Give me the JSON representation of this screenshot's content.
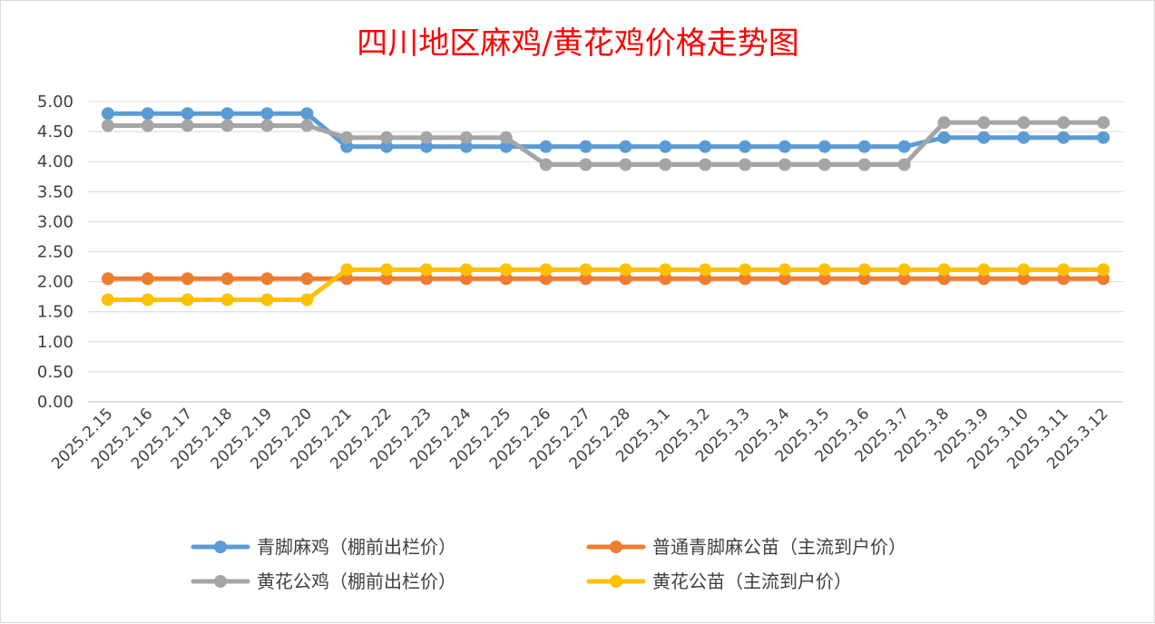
{
  "chart_data": {
    "type": "line",
    "title": "四川地区麻鸡/黄花鸡价格走势图",
    "xlabel": "",
    "ylabel": "",
    "ylim": [
      0,
      5
    ],
    "ytick_labels": [
      "0.00",
      "0.50",
      "1.00",
      "1.50",
      "2.00",
      "2.50",
      "3.00",
      "3.50",
      "4.00",
      "4.50",
      "5.00"
    ],
    "grid": true,
    "legend_position": "bottom",
    "categories": [
      "2025.2.15",
      "2025.2.16",
      "2025.2.17",
      "2025.2.18",
      "2025.2.19",
      "2025.2.20",
      "2025.2.21",
      "2025.2.22",
      "2025.2.23",
      "2025.2.24",
      "2025.2.25",
      "2025.2.26",
      "2025.2.27",
      "2025.2.28",
      "2025.3.1",
      "2025.3.2",
      "2025.3.3",
      "2025.3.4",
      "2025.3.5",
      "2025.3.6",
      "2025.3.7",
      "2025.3.8",
      "2025.3.9",
      "2025.3.10",
      "2025.3.11",
      "2025.3.12"
    ],
    "series": [
      {
        "name": "青脚麻鸡（棚前出栏价）",
        "color": "#5b9bd5",
        "values": [
          4.8,
          4.8,
          4.8,
          4.8,
          4.8,
          4.8,
          4.25,
          4.25,
          4.25,
          4.25,
          4.25,
          4.25,
          4.25,
          4.25,
          4.25,
          4.25,
          4.25,
          4.25,
          4.25,
          4.25,
          4.25,
          4.4,
          4.4,
          4.4,
          4.4,
          4.4
        ]
      },
      {
        "name": "普通青脚麻公苗（主流到户价）",
        "color": "#ed7d31",
        "values": [
          2.05,
          2.05,
          2.05,
          2.05,
          2.05,
          2.05,
          2.05,
          2.05,
          2.05,
          2.05,
          2.05,
          2.05,
          2.05,
          2.05,
          2.05,
          2.05,
          2.05,
          2.05,
          2.05,
          2.05,
          2.05,
          2.05,
          2.05,
          2.05,
          2.05,
          2.05
        ]
      },
      {
        "name": "黄花公鸡（棚前出栏价）",
        "color": "#a5a5a5",
        "values": [
          4.6,
          4.6,
          4.6,
          4.6,
          4.6,
          4.6,
          4.4,
          4.4,
          4.4,
          4.4,
          4.4,
          3.95,
          3.95,
          3.95,
          3.95,
          3.95,
          3.95,
          3.95,
          3.95,
          3.95,
          3.95,
          4.65,
          4.65,
          4.65,
          4.65,
          4.65
        ]
      },
      {
        "name": "黄花公苗（主流到户价）",
        "color": "#ffc000",
        "values": [
          1.7,
          1.7,
          1.7,
          1.7,
          1.7,
          1.7,
          2.2,
          2.2,
          2.2,
          2.2,
          2.2,
          2.2,
          2.2,
          2.2,
          2.2,
          2.2,
          2.2,
          2.2,
          2.2,
          2.2,
          2.2,
          2.2,
          2.2,
          2.2,
          2.2,
          2.2
        ]
      }
    ]
  }
}
